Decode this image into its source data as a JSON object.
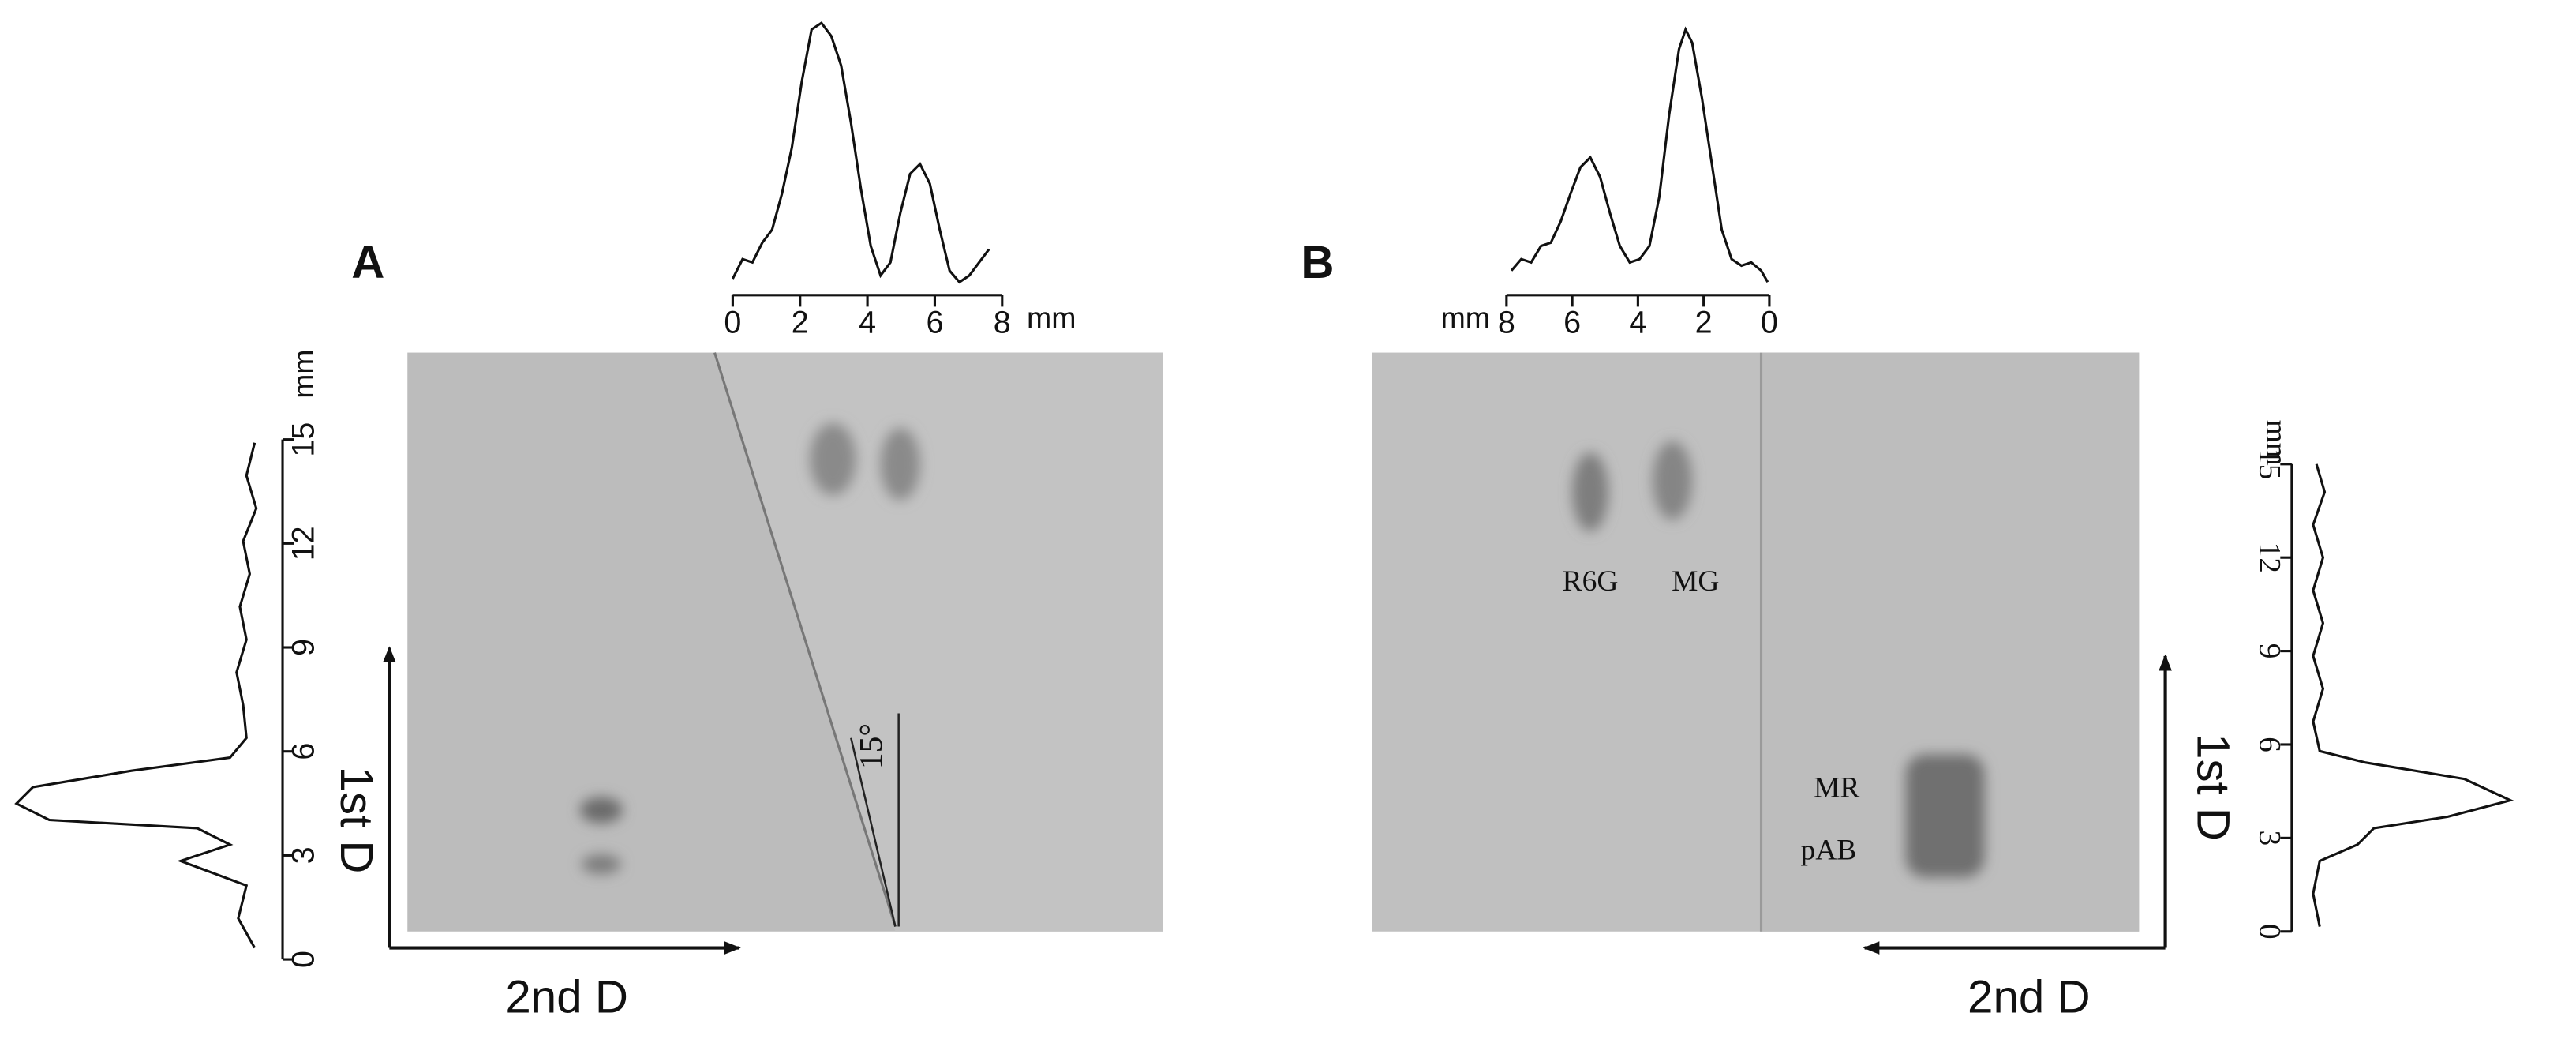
{
  "panels": [
    {
      "label": "A",
      "top_axis": {
        "ticks": [
          "0",
          "2",
          "4",
          "6",
          "8"
        ],
        "unit": "mm"
      },
      "side_axis": {
        "ticks": [
          "0",
          "3",
          "6",
          "9",
          "12",
          "15"
        ],
        "unit": "mm"
      },
      "x_direction": "2nd D",
      "y_direction": "1st D",
      "angle": "15°"
    },
    {
      "label": "B",
      "top_axis": {
        "ticks": [
          "8",
          "6",
          "4",
          "2",
          "0"
        ],
        "unit": "mm"
      },
      "side_axis": {
        "ticks": [
          "0",
          "3",
          "6",
          "9",
          "12",
          "15"
        ],
        "unit": "mm"
      },
      "x_direction": "2nd D",
      "y_direction": "1st D",
      "spots": [
        "R6G",
        "MG",
        "MR",
        "pAB"
      ]
    }
  ]
}
